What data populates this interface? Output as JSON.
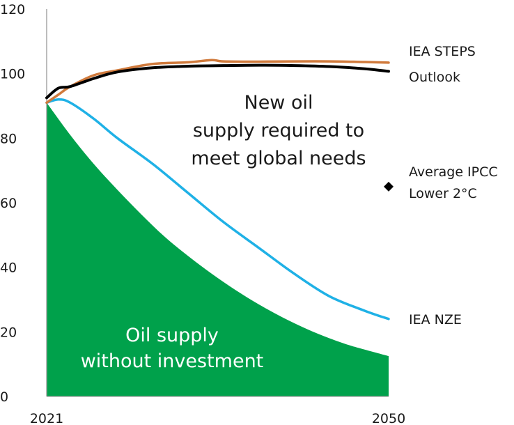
{
  "chart_data": {
    "type": "line",
    "title": "",
    "xlabel": "",
    "ylabel": "",
    "xlim": [
      2021,
      2050
    ],
    "ylim": [
      0,
      120
    ],
    "x_ticks": [
      "2021",
      "2050"
    ],
    "y_ticks": [
      "0",
      "20",
      "40",
      "60",
      "80",
      "100",
      "120"
    ],
    "colors": {
      "area": "#00a14b",
      "outlook": "#000000",
      "steps": "#d07a3c",
      "nze": "#1fb1e6",
      "axis": "#999999",
      "marker": "#000000"
    },
    "area": {
      "name": "Oil supply without investment",
      "label_lines": [
        "Oil supply",
        "without investment"
      ],
      "x": [
        2021,
        2023,
        2025,
        2027,
        2029,
        2031,
        2033,
        2035,
        2037,
        2039,
        2041,
        2043,
        2045,
        2047,
        2050
      ],
      "y": [
        91,
        81,
        72,
        64,
        56.5,
        49.5,
        43.5,
        38,
        33,
        28.5,
        24.5,
        21,
        18,
        15.5,
        12.5
      ]
    },
    "series": [
      {
        "name": "Outlook",
        "label": "Outlook",
        "x": [
          2021,
          2022,
          2023,
          2025,
          2027,
          2030,
          2033,
          2036,
          2039,
          2042,
          2045,
          2048,
          2050
        ],
        "y": [
          92.5,
          95.5,
          96,
          98.5,
          100.5,
          101.8,
          102.3,
          102.5,
          102.6,
          102.5,
          102.2,
          101.5,
          100.7
        ]
      },
      {
        "name": "IEA STEPS",
        "label": "IEA STEPS",
        "x": [
          2021,
          2022,
          2023,
          2025,
          2027,
          2030,
          2033,
          2035,
          2036,
          2039,
          2042,
          2045,
          2048,
          2050
        ],
        "y": [
          91,
          93.5,
          96,
          99.5,
          101,
          103,
          103.5,
          104.2,
          103.8,
          103.7,
          103.8,
          103.8,
          103.6,
          103.4
        ]
      },
      {
        "name": "IEA NZE",
        "label": "IEA NZE",
        "x": [
          2021,
          2022,
          2023,
          2025,
          2027,
          2030,
          2033,
          2036,
          2039,
          2042,
          2045,
          2048,
          2050
        ],
        "y": [
          91,
          92,
          91,
          86,
          80,
          72,
          63,
          54,
          46,
          38,
          31,
          26.5,
          24
        ]
      }
    ],
    "points": [
      {
        "name": "Average IPCC Lower 2°C",
        "label_lines": [
          "Average IPCC",
          "Lower 2°C"
        ],
        "x": 2050,
        "y": 65
      }
    ],
    "annotations": {
      "gap_lines": [
        "New oil",
        "supply required to",
        "meet global needs"
      ]
    }
  }
}
